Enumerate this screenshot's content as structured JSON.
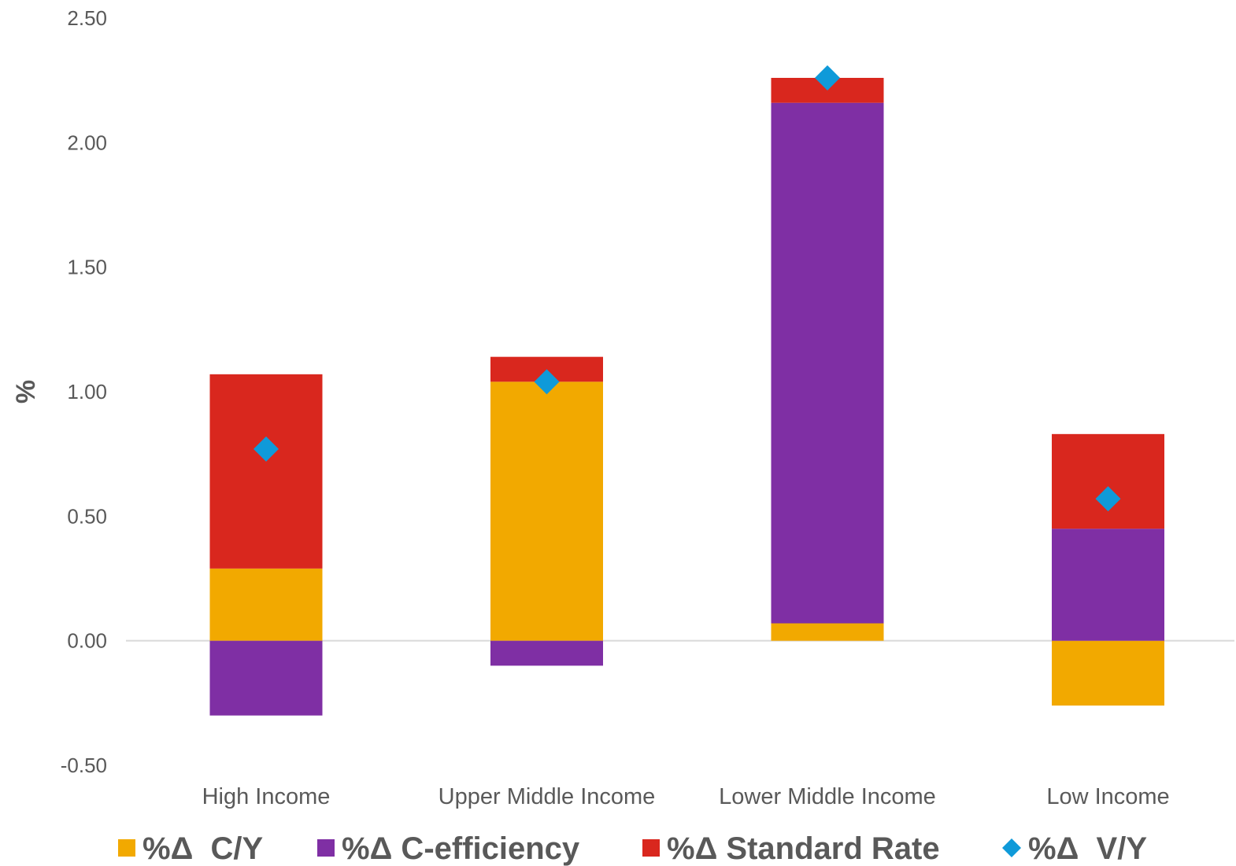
{
  "chart_data": {
    "type": "bar",
    "stacked": true,
    "title": "",
    "xlabel": "",
    "ylabel": "%",
    "ylim": [
      -0.5,
      2.5
    ],
    "yticks": [
      2.5,
      2.0,
      1.5,
      1.0,
      0.5,
      0.0,
      -0.5
    ],
    "ytick_labels": [
      "2.50",
      "2.00",
      "1.50",
      "1.00",
      "0.50",
      "0.00",
      "-0.50"
    ],
    "grid": false,
    "legend_position": "bottom",
    "categories": [
      "High Income",
      "Upper Middle Income",
      "Lower Middle Income",
      "Low Income"
    ],
    "series": [
      {
        "name": "%Δ  C/Y",
        "kind": "bar",
        "color": "#F2A900",
        "values": [
          0.29,
          1.04,
          0.07,
          -0.26
        ]
      },
      {
        "name": "%Δ C-efficiency",
        "kind": "bar",
        "color": "#7F2FA4",
        "values": [
          -0.3,
          -0.1,
          2.09,
          0.45
        ]
      },
      {
        "name": "%Δ Standard Rate",
        "kind": "bar",
        "color": "#D9271E",
        "values": [
          0.78,
          0.1,
          0.1,
          0.38
        ]
      },
      {
        "name": "%Δ  V/Y",
        "kind": "marker",
        "marker": "diamond",
        "color": "#0F9AD9",
        "values": [
          0.77,
          1.04,
          2.26,
          0.57
        ]
      }
    ]
  }
}
